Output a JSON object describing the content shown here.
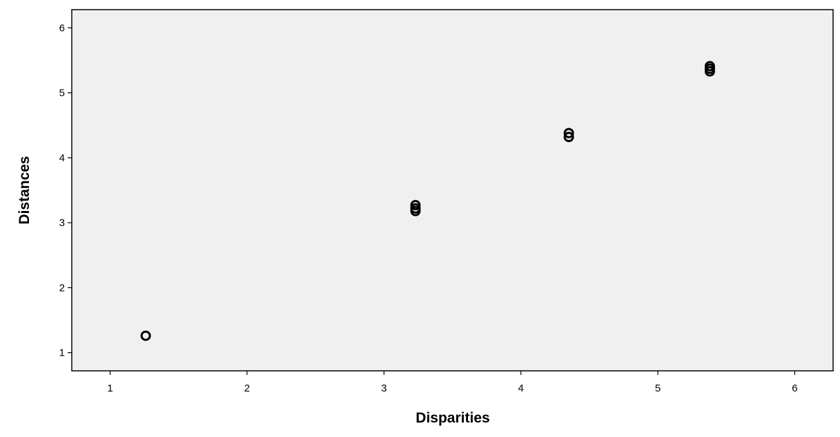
{
  "chart_data": {
    "type": "scatter",
    "title": "",
    "xlabel": "Disparities",
    "ylabel": "Distances",
    "xlim": [
      0.72,
      6.28
    ],
    "ylim": [
      0.72,
      6.28
    ],
    "x_ticks": [
      1,
      2,
      3,
      4,
      5,
      6
    ],
    "y_ticks": [
      1,
      2,
      3,
      4,
      5,
      6
    ],
    "grid": false,
    "legend": "none",
    "colors": {
      "plot_background": "#f0f0f0",
      "marker": "#000000",
      "axis": "#000000"
    },
    "series": [
      {
        "marker": "open-circle",
        "points": [
          {
            "x": 1.26,
            "y": 1.26
          },
          {
            "x": 3.23,
            "y": 3.18
          },
          {
            "x": 3.23,
            "y": 3.22
          },
          {
            "x": 3.23,
            "y": 3.27
          },
          {
            "x": 4.35,
            "y": 4.32
          },
          {
            "x": 4.35,
            "y": 4.38
          },
          {
            "x": 5.38,
            "y": 5.33
          },
          {
            "x": 5.38,
            "y": 5.37
          },
          {
            "x": 5.38,
            "y": 5.41
          }
        ]
      }
    ]
  }
}
